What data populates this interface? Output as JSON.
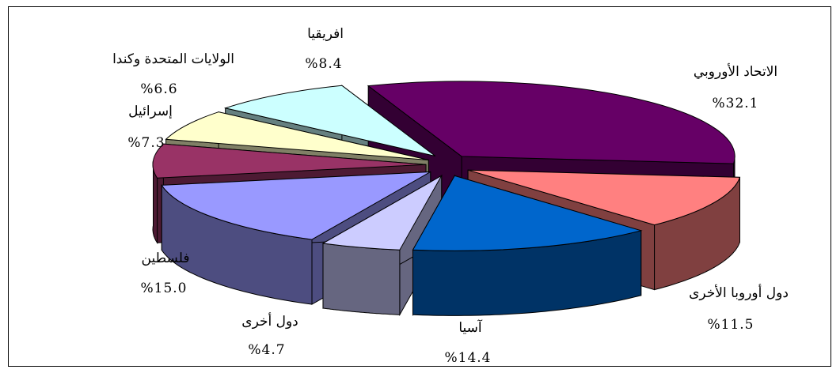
{
  "chart_data": {
    "type": "pie",
    "three_d": true,
    "exploded": true,
    "slices": [
      {
        "label": "الاتحاد الأوروبي",
        "value_text": "%32.1",
        "value": 32.1,
        "top_color": "#660066",
        "side_color": "#330033"
      },
      {
        "label": "دول أوروبا الأخرى",
        "value_text": "%11.5",
        "value": 11.5,
        "top_color": "#ff8080",
        "side_color": "#804040"
      },
      {
        "label": "آسيا",
        "value_text": "%14.4",
        "value": 14.4,
        "top_color": "#0066cc",
        "side_color": "#003366"
      },
      {
        "label": "دول أخرى",
        "value_text": "%4.7",
        "value": 4.7,
        "top_color": "#ccccff",
        "side_color": "#666680"
      },
      {
        "label": "فلسطين",
        "value_text": "%15.0",
        "value": 15.0,
        "top_color": "#9999ff",
        "side_color": "#4d4d80"
      },
      {
        "label": "إسرائيل",
        "value_text": "%7.3",
        "value": 7.3,
        "top_color": "#993366",
        "side_color": "#4d1a33"
      },
      {
        "label": "الولايات المتحدة وكندا",
        "value_text": "%6.6",
        "value": 6.6,
        "top_color": "#ffffcc",
        "side_color": "#808066"
      },
      {
        "label": "افريقيا",
        "value_text": "%8.4",
        "value": 8.4,
        "top_color": "#ccffff",
        "side_color": "#668080"
      }
    ]
  }
}
